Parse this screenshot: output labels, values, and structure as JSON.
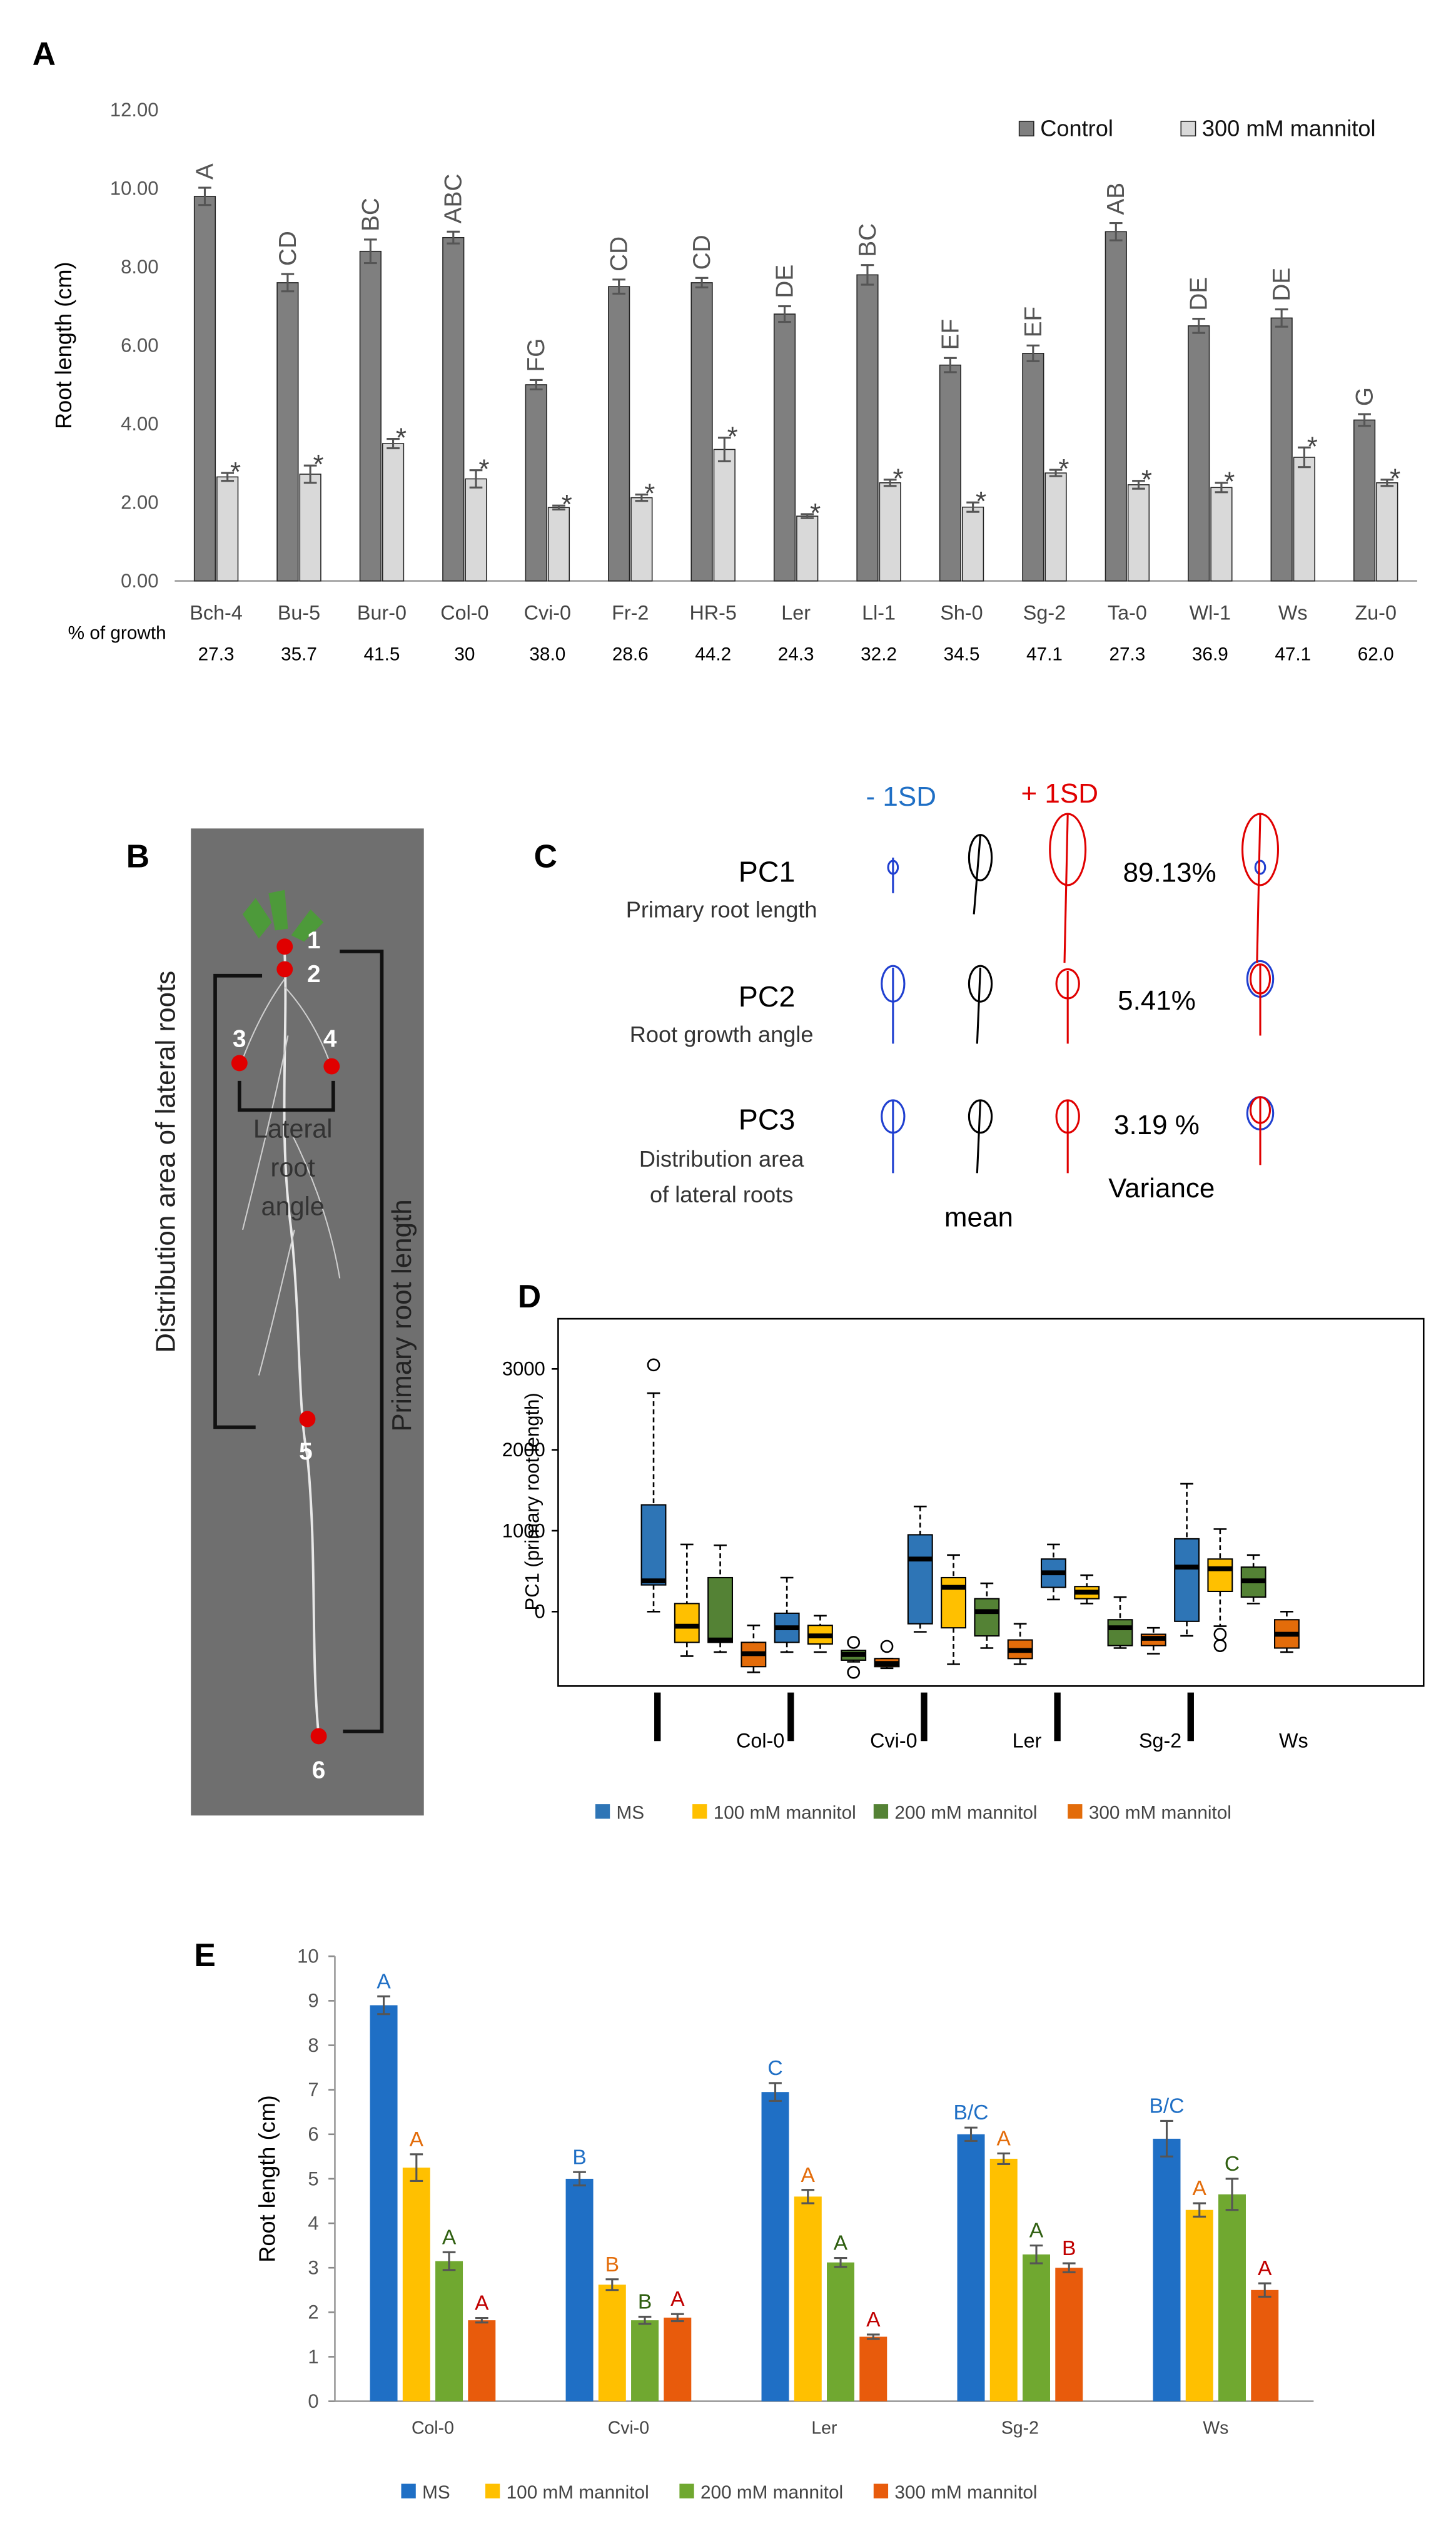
{
  "chart_data": [
    {
      "label": "A",
      "type": "bar",
      "ylabel": "Root length (cm)",
      "categories": [
        "Bch-4",
        "Bu-5",
        "Bur-0",
        "Col-0",
        "Cvi-0",
        "Fr-2",
        "HR-5",
        "Ler",
        "Ll-1",
        "Sh-0",
        "Sg-2",
        "Ta-0",
        "Wl-1",
        "Ws",
        "Zu-0"
      ],
      "ylim": [
        0,
        12
      ],
      "yticks": [
        {
          "value": 0,
          "label": "0.00"
        },
        {
          "value": 2,
          "label": "2.00"
        },
        {
          "value": 4,
          "label": "4.00"
        },
        {
          "value": 6,
          "label": "6.00"
        },
        {
          "value": 8,
          "label": "8.00"
        },
        {
          "value": 10,
          "label": "10.00"
        },
        {
          "value": 12,
          "label": "12.00"
        }
      ],
      "legend": "upper right",
      "series": [
        {
          "name": "Control",
          "color": "#7f7f7f",
          "values": [
            9.8,
            7.6,
            8.4,
            8.75,
            5.0,
            7.5,
            7.6,
            6.8,
            7.8,
            5.5,
            5.8,
            8.9,
            6.5,
            6.7,
            4.1
          ],
          "errors": [
            0.22,
            0.22,
            0.3,
            0.15,
            0.12,
            0.18,
            0.12,
            0.2,
            0.25,
            0.18,
            0.2,
            0.22,
            0.18,
            0.22,
            0.15
          ],
          "significance": [
            "A",
            "CD",
            "BC",
            "ABC",
            "FG",
            "CD",
            "CD",
            "DE",
            "BC",
            "EF",
            "EF",
            "AB",
            "DE",
            "DE",
            "G"
          ]
        },
        {
          "name": "300 mM mannitol",
          "color": "#d9d9d9",
          "values": [
            2.65,
            2.72,
            3.5,
            2.6,
            1.87,
            2.12,
            3.35,
            1.65,
            2.5,
            1.88,
            2.75,
            2.45,
            2.38,
            3.15,
            2.5
          ],
          "errors": [
            0.1,
            0.22,
            0.12,
            0.22,
            0.05,
            0.08,
            0.3,
            0.05,
            0.08,
            0.12,
            0.08,
            0.1,
            0.12,
            0.25,
            0.08
          ],
          "significance": [
            "*",
            "*",
            "*",
            "*",
            "*",
            "*",
            "*",
            "*",
            "*",
            "*",
            "*",
            "*",
            "*",
            "*",
            "*"
          ]
        }
      ],
      "growth_title": "% of growth",
      "growth": [
        "27.3",
        "35.7",
        "41.5",
        "30",
        "38.0",
        "28.6",
        "44.2",
        "24.3",
        "32.2",
        "34.5",
        "47.1",
        "27.3",
        "36.9",
        "47.1",
        "62.0"
      ]
    },
    {
      "label": "D",
      "type": "box",
      "ylabel": "PC1 (primary root length)",
      "categories": [
        "Col-0",
        "Cvi-0",
        "Ler",
        "Sg-2",
        "Ws"
      ],
      "ylim": [
        -920,
        3620
      ],
      "yticks": [
        0,
        1000,
        2000,
        3000
      ],
      "legend": "bottom",
      "series": [
        {
          "name": "MS",
          "color": "#2e75b6",
          "boxes": [
            {
              "min": 0,
              "q1": 330,
              "median": 380,
              "q3": 1320,
              "max": 2700,
              "outliers": [
                3050
              ]
            },
            {
              "min": -500,
              "q1": -380,
              "median": -200,
              "q3": -20,
              "max": 420,
              "outliers": []
            },
            {
              "min": -250,
              "q1": -150,
              "median": 650,
              "q3": 950,
              "max": 1300,
              "outliers": []
            },
            {
              "min": 150,
              "q1": 300,
              "median": 480,
              "q3": 650,
              "max": 830,
              "outliers": []
            },
            {
              "min": -300,
              "q1": -120,
              "median": 550,
              "q3": 900,
              "max": 1580,
              "outliers": []
            }
          ]
        },
        {
          "name": "100 mM mannitol",
          "color": "#ffc000",
          "boxes": [
            {
              "min": -550,
              "q1": -380,
              "median": -180,
              "q3": 100,
              "max": 830,
              "outliers": []
            },
            {
              "min": -500,
              "q1": -400,
              "median": -300,
              "q3": -170,
              "max": -50,
              "outliers": []
            },
            {
              "min": -650,
              "q1": -200,
              "median": 300,
              "q3": 420,
              "max": 700,
              "outliers": []
            },
            {
              "min": 100,
              "q1": 160,
              "median": 240,
              "q3": 310,
              "max": 450,
              "outliers": []
            },
            {
              "min": -180,
              "q1": 250,
              "median": 530,
              "q3": 650,
              "max": 1020,
              "outliers": [
                -280,
                -420
              ]
            }
          ]
        },
        {
          "name": "200 mM mannitol",
          "color": "#548235",
          "boxes": [
            {
              "min": -500,
              "q1": -380,
              "median": -350,
              "q3": 420,
              "max": 820,
              "outliers": []
            },
            {
              "min": -620,
              "q1": -600,
              "median": -530,
              "q3": -480,
              "max": -480,
              "outliers": [
                -380,
                -750
              ]
            },
            {
              "min": -450,
              "q1": -300,
              "median": 0,
              "q3": 160,
              "max": 350,
              "outliers": []
            },
            {
              "min": -450,
              "q1": -420,
              "median": -200,
              "q3": -100,
              "max": 180,
              "outliers": []
            },
            {
              "min": 100,
              "q1": 180,
              "median": 380,
              "q3": 550,
              "max": 700,
              "outliers": []
            }
          ]
        },
        {
          "name": "300 mM mannitol",
          "color": "#e36c0a",
          "boxes": [
            {
              "min": -750,
              "q1": -680,
              "median": -520,
              "q3": -380,
              "max": -170,
              "outliers": []
            },
            {
              "min": -700,
              "q1": -680,
              "median": -640,
              "q3": -580,
              "max": -580,
              "outliers": [
                -430
              ]
            },
            {
              "min": -650,
              "q1": -580,
              "median": -480,
              "q3": -350,
              "max": -150,
              "outliers": []
            },
            {
              "min": -520,
              "q1": -420,
              "median": -330,
              "q3": -280,
              "max": -200,
              "outliers": []
            },
            {
              "min": -500,
              "q1": -450,
              "median": -280,
              "q3": -100,
              "max": 0,
              "outliers": []
            }
          ]
        }
      ]
    },
    {
      "label": "E",
      "type": "bar",
      "ylabel": "Root length (cm)",
      "categories": [
        "Col-0",
        "Cvi-0",
        "Ler",
        "Sg-2",
        "Ws"
      ],
      "ylim": [
        0,
        10
      ],
      "yticks": [
        0,
        1,
        2,
        3,
        4,
        5,
        6,
        7,
        8,
        9,
        10
      ],
      "legend": "bottom",
      "series": [
        {
          "name": "MS",
          "color": "#1f6fc5",
          "letter_color": "#1f6fc5",
          "values": [
            8.9,
            5.0,
            6.95,
            6.0,
            5.9
          ],
          "errors": [
            0.2,
            0.15,
            0.2,
            0.15,
            0.4
          ],
          "significance": [
            "A",
            "B",
            "C",
            "B/C",
            "B/C"
          ]
        },
        {
          "name": "100 mM mannitol",
          "color": "#ffc000",
          "letter_color": "#e36c0a",
          "values": [
            5.25,
            2.62,
            4.6,
            5.45,
            4.3
          ],
          "errors": [
            0.3,
            0.12,
            0.15,
            0.12,
            0.15
          ],
          "significance": [
            "A",
            "B",
            "A",
            "A",
            "A"
          ]
        },
        {
          "name": "200 mM mannitol",
          "color": "#70a830",
          "letter_color": "#2f5f10",
          "values": [
            3.15,
            1.82,
            3.12,
            3.3,
            4.65
          ],
          "errors": [
            0.2,
            0.08,
            0.1,
            0.2,
            0.35
          ],
          "significance": [
            "A",
            "B",
            "A",
            "A",
            "C"
          ]
        },
        {
          "name": "300 mM mannitol",
          "color": "#e85b0c",
          "letter_color": "#c00000",
          "values": [
            1.82,
            1.88,
            1.45,
            3.0,
            2.5
          ],
          "errors": [
            0.05,
            0.08,
            0.05,
            0.1,
            0.15
          ],
          "significance": [
            "A",
            "A",
            "A",
            "B",
            "A"
          ]
        }
      ]
    }
  ],
  "panel_b": {
    "label": "B",
    "points": [
      "1",
      "2",
      "3",
      "4",
      "5",
      "6"
    ],
    "angle_label": "Lateral root angle",
    "area_label": "Distribution area  of lateral roots",
    "length_label": "Primary root length"
  },
  "panel_c": {
    "label": "C",
    "minus": "- 1SD",
    "plus": "+ 1SD",
    "mean": "mean",
    "variance": "Variance",
    "components": [
      {
        "name": "PC1",
        "description": [
          "Primary root length"
        ],
        "variance": "89.13%"
      },
      {
        "name": "PC2",
        "description": [
          "Root growth angle"
        ],
        "variance": "5.41%"
      },
      {
        "name": "PC3",
        "description": [
          "Distribution area",
          "of lateral roots"
        ],
        "variance": "3.19 %"
      }
    ]
  }
}
